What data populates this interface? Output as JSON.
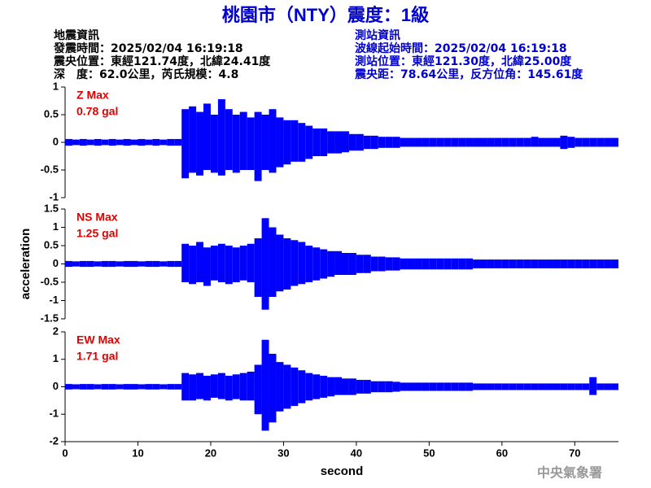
{
  "header": {
    "title": "桃園市（NTY）震度：1級",
    "event": [
      "地震資訊",
      "發震時間：2025/02/04 16:19:18",
      "震央位置：東經121.74度，北緯24.41度",
      "深　度：62.0公里，芮氏規模：4.8"
    ],
    "station": [
      "測站資訊",
      "波線起始時間：2025/02/04 16:19:18",
      "測站位置：東經121.30度，北緯25.00度",
      "震央距：78.64公里，反方位角：145.61度"
    ]
  },
  "footer": "中央氣象署",
  "chart_data": [
    {
      "type": "envelope",
      "label": "Z Max",
      "max_label": "0.78 gal",
      "color": "#0000ff",
      "xlim": [
        0,
        76
      ],
      "ylim": [
        -1,
        1
      ],
      "yticks": [
        1,
        0.5,
        0,
        -0.5,
        -1
      ],
      "x": [
        0,
        1,
        2,
        3,
        4,
        5,
        6,
        7,
        8,
        9,
        10,
        11,
        12,
        13,
        14,
        15,
        16,
        17,
        18,
        19,
        20,
        21,
        22,
        23,
        24,
        25,
        26,
        27,
        28,
        29,
        30,
        31,
        32,
        33,
        34,
        35,
        36,
        37,
        38,
        39,
        40,
        41,
        42,
        43,
        44,
        45,
        46,
        47,
        48,
        49,
        50,
        51,
        52,
        53,
        54,
        55,
        56,
        57,
        58,
        59,
        60,
        61,
        62,
        63,
        64,
        65,
        66,
        67,
        68,
        69,
        70,
        71,
        72,
        73,
        74,
        75
      ],
      "max": [
        0.06,
        0.05,
        0.06,
        0.05,
        0.06,
        0.05,
        0.06,
        0.05,
        0.06,
        0.05,
        0.06,
        0.05,
        0.06,
        0.05,
        0.06,
        0.06,
        0.6,
        0.65,
        0.55,
        0.7,
        0.5,
        0.78,
        0.6,
        0.5,
        0.55,
        0.45,
        0.55,
        0.5,
        0.6,
        0.45,
        0.4,
        0.4,
        0.35,
        0.3,
        0.25,
        0.25,
        0.2,
        0.2,
        0.2,
        0.15,
        0.15,
        0.12,
        0.12,
        0.1,
        0.1,
        0.1,
        0.08,
        0.08,
        0.08,
        0.08,
        0.08,
        0.08,
        0.08,
        0.08,
        0.08,
        0.08,
        0.08,
        0.08,
        0.08,
        0.08,
        0.08,
        0.08,
        0.08,
        0.08,
        0.1,
        0.08,
        0.08,
        0.08,
        0.12,
        0.1,
        0.08,
        0.08,
        0.08,
        0.08,
        0.08,
        0.08
      ],
      "min": [
        -0.06,
        -0.05,
        -0.06,
        -0.05,
        -0.06,
        -0.05,
        -0.06,
        -0.05,
        -0.06,
        -0.05,
        -0.06,
        -0.05,
        -0.06,
        -0.05,
        -0.06,
        -0.06,
        -0.65,
        -0.55,
        -0.6,
        -0.5,
        -0.55,
        -0.6,
        -0.5,
        -0.55,
        -0.5,
        -0.5,
        -0.7,
        -0.5,
        -0.55,
        -0.45,
        -0.4,
        -0.35,
        -0.35,
        -0.3,
        -0.25,
        -0.25,
        -0.2,
        -0.2,
        -0.18,
        -0.15,
        -0.15,
        -0.12,
        -0.12,
        -0.1,
        -0.1,
        -0.1,
        -0.08,
        -0.08,
        -0.08,
        -0.08,
        -0.08,
        -0.08,
        -0.08,
        -0.08,
        -0.08,
        -0.08,
        -0.08,
        -0.08,
        -0.08,
        -0.08,
        -0.08,
        -0.08,
        -0.08,
        -0.08,
        -0.08,
        -0.08,
        -0.08,
        -0.08,
        -0.12,
        -0.1,
        -0.08,
        -0.08,
        -0.08,
        -0.08,
        -0.08,
        -0.08
      ]
    },
    {
      "type": "envelope",
      "label": "NS Max",
      "max_label": "1.25 gal",
      "color": "#0000ff",
      "ylabel": "acceleration",
      "xlim": [
        0,
        76
      ],
      "ylim": [
        -1.5,
        1.5
      ],
      "yticks": [
        1.5,
        1,
        0.5,
        0,
        -0.5,
        -1,
        -1.5
      ],
      "x": [
        0,
        1,
        2,
        3,
        4,
        5,
        6,
        7,
        8,
        9,
        10,
        11,
        12,
        13,
        14,
        15,
        16,
        17,
        18,
        19,
        20,
        21,
        22,
        23,
        24,
        25,
        26,
        27,
        28,
        29,
        30,
        31,
        32,
        33,
        34,
        35,
        36,
        37,
        38,
        39,
        40,
        41,
        42,
        43,
        44,
        45,
        46,
        47,
        48,
        49,
        50,
        51,
        52,
        53,
        54,
        55,
        56,
        57,
        58,
        59,
        60,
        61,
        62,
        63,
        64,
        65,
        66,
        67,
        68,
        69,
        70,
        71,
        72,
        73,
        74,
        75
      ],
      "max": [
        0.08,
        0.07,
        0.08,
        0.08,
        0.07,
        0.08,
        0.08,
        0.07,
        0.08,
        0.08,
        0.07,
        0.08,
        0.08,
        0.07,
        0.08,
        0.08,
        0.55,
        0.5,
        0.6,
        0.45,
        0.5,
        0.55,
        0.5,
        0.45,
        0.5,
        0.55,
        0.7,
        1.25,
        1.0,
        0.8,
        0.7,
        0.65,
        0.6,
        0.5,
        0.45,
        0.4,
        0.35,
        0.35,
        0.3,
        0.3,
        0.25,
        0.25,
        0.2,
        0.2,
        0.18,
        0.18,
        0.15,
        0.15,
        0.15,
        0.15,
        0.15,
        0.15,
        0.15,
        0.15,
        0.15,
        0.15,
        0.12,
        0.12,
        0.12,
        0.12,
        0.12,
        0.12,
        0.12,
        0.12,
        0.12,
        0.12,
        0.12,
        0.12,
        0.12,
        0.12,
        0.12,
        0.12,
        0.12,
        0.12,
        0.12,
        0.12
      ],
      "min": [
        -0.08,
        -0.07,
        -0.08,
        -0.08,
        -0.07,
        -0.08,
        -0.08,
        -0.07,
        -0.08,
        -0.08,
        -0.07,
        -0.08,
        -0.08,
        -0.07,
        -0.08,
        -0.08,
        -0.5,
        -0.55,
        -0.5,
        -0.6,
        -0.45,
        -0.5,
        -0.55,
        -0.5,
        -0.45,
        -0.5,
        -0.9,
        -1.25,
        -0.9,
        -0.75,
        -0.7,
        -0.6,
        -0.55,
        -0.5,
        -0.45,
        -0.4,
        -0.35,
        -0.3,
        -0.3,
        -0.3,
        -0.25,
        -0.25,
        -0.2,
        -0.2,
        -0.18,
        -0.18,
        -0.15,
        -0.15,
        -0.15,
        -0.15,
        -0.15,
        -0.15,
        -0.15,
        -0.15,
        -0.15,
        -0.15,
        -0.12,
        -0.12,
        -0.12,
        -0.12,
        -0.12,
        -0.12,
        -0.12,
        -0.12,
        -0.12,
        -0.12,
        -0.12,
        -0.12,
        -0.12,
        -0.12,
        -0.12,
        -0.12,
        -0.12,
        -0.12,
        -0.12,
        -0.12
      ]
    },
    {
      "type": "envelope",
      "label": "EW Max",
      "max_label": "1.71 gal",
      "color": "#0000ff",
      "xlabel": "second",
      "xlim": [
        0,
        76
      ],
      "ylim": [
        -2,
        2
      ],
      "yticks": [
        2,
        1,
        0,
        -1,
        -2
      ],
      "xticks": [
        0,
        10,
        20,
        30,
        40,
        50,
        60,
        70
      ],
      "x": [
        0,
        1,
        2,
        3,
        4,
        5,
        6,
        7,
        8,
        9,
        10,
        11,
        12,
        13,
        14,
        15,
        16,
        17,
        18,
        19,
        20,
        21,
        22,
        23,
        24,
        25,
        26,
        27,
        28,
        29,
        30,
        31,
        32,
        33,
        34,
        35,
        36,
        37,
        38,
        39,
        40,
        41,
        42,
        43,
        44,
        45,
        46,
        47,
        48,
        49,
        50,
        51,
        52,
        53,
        54,
        55,
        56,
        57,
        58,
        59,
        60,
        61,
        62,
        63,
        64,
        65,
        66,
        67,
        68,
        69,
        70,
        71,
        72,
        73,
        74,
        75
      ],
      "max": [
        0.1,
        0.09,
        0.1,
        0.1,
        0.09,
        0.1,
        0.1,
        0.09,
        0.1,
        0.1,
        0.09,
        0.1,
        0.1,
        0.09,
        0.1,
        0.1,
        0.5,
        0.45,
        0.5,
        0.4,
        0.45,
        0.5,
        0.4,
        0.45,
        0.5,
        0.55,
        0.8,
        1.71,
        1.2,
        0.9,
        0.8,
        0.7,
        0.6,
        0.5,
        0.45,
        0.4,
        0.35,
        0.35,
        0.3,
        0.3,
        0.25,
        0.25,
        0.2,
        0.2,
        0.2,
        0.18,
        0.15,
        0.15,
        0.15,
        0.15,
        0.15,
        0.15,
        0.15,
        0.15,
        0.15,
        0.15,
        0.12,
        0.12,
        0.12,
        0.12,
        0.12,
        0.12,
        0.12,
        0.12,
        0.12,
        0.12,
        0.12,
        0.12,
        0.12,
        0.12,
        0.12,
        0.12,
        0.35,
        0.12,
        0.12,
        0.12
      ],
      "min": [
        -0.1,
        -0.09,
        -0.1,
        -0.1,
        -0.09,
        -0.1,
        -0.1,
        -0.09,
        -0.1,
        -0.1,
        -0.09,
        -0.1,
        -0.1,
        -0.09,
        -0.1,
        -0.1,
        -0.5,
        -0.5,
        -0.45,
        -0.5,
        -0.4,
        -0.45,
        -0.5,
        -0.45,
        -0.5,
        -0.5,
        -1.0,
        -1.6,
        -1.3,
        -0.9,
        -0.8,
        -0.7,
        -0.6,
        -0.5,
        -0.45,
        -0.4,
        -0.35,
        -0.3,
        -0.3,
        -0.3,
        -0.25,
        -0.25,
        -0.2,
        -0.2,
        -0.2,
        -0.18,
        -0.15,
        -0.15,
        -0.15,
        -0.15,
        -0.15,
        -0.15,
        -0.15,
        -0.15,
        -0.15,
        -0.15,
        -0.12,
        -0.12,
        -0.12,
        -0.12,
        -0.12,
        -0.12,
        -0.12,
        -0.12,
        -0.12,
        -0.12,
        -0.12,
        -0.12,
        -0.12,
        -0.12,
        -0.12,
        -0.12,
        -0.3,
        -0.12,
        -0.12,
        -0.12
      ]
    }
  ]
}
